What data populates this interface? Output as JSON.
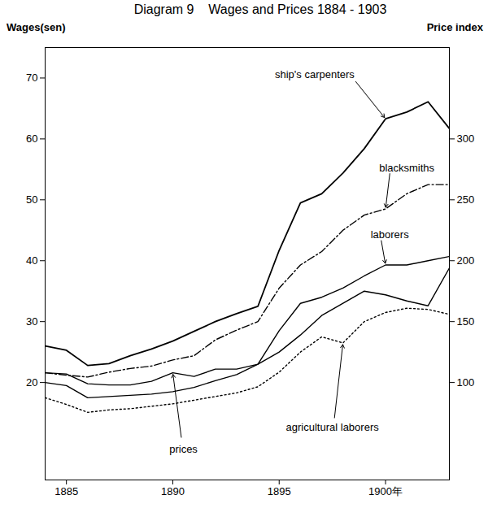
{
  "chart_data": {
    "type": "line",
    "title": "Diagram 9    Wages and Prices 1884 - 1903",
    "y_label": "Wages(sen)",
    "y2_label": "Price index",
    "x": [
      1884,
      1885,
      1886,
      1887,
      1888,
      1889,
      1890,
      1891,
      1892,
      1893,
      1894,
      1895,
      1896,
      1897,
      1898,
      1899,
      1900,
      1901,
      1902,
      1903
    ],
    "xlim": [
      1884,
      1903
    ],
    "xticks": [
      1885,
      1890,
      1895,
      {
        "value": 1900,
        "label": "1900年"
      }
    ],
    "ylim": [
      4,
      75
    ],
    "yticks": [
      20,
      30,
      40,
      50,
      60,
      70
    ],
    "y2lim": [
      20,
      375
    ],
    "y2ticks": [
      100,
      150,
      200,
      250,
      300
    ],
    "grid": false,
    "series": [
      {
        "name": "ship's carpenters",
        "color": "#000000",
        "line_style": "solid",
        "values": [
          26,
          25.3,
          22.8,
          23.1,
          24.4,
          25.5,
          26.8,
          28.4,
          30,
          31.3,
          32.5,
          41.7,
          49.5,
          51,
          54.4,
          58.4,
          63.3,
          64.4,
          66.1,
          61.7
        ]
      },
      {
        "name": "blacksmiths",
        "color": "#000000",
        "line_style": "dashdot",
        "values": [
          21.6,
          21.2,
          20.9,
          21.7,
          22.3,
          22.7,
          23.7,
          24.4,
          27,
          28.6,
          30,
          35.5,
          39.3,
          41.5,
          45,
          47.5,
          48.5,
          51,
          52.5,
          52.5
        ]
      },
      {
        "name": "laborers",
        "color": "#000000",
        "line_style": "solid",
        "values": [
          20,
          19.5,
          17.5,
          17.7,
          17.9,
          18.1,
          18.5,
          19.2,
          20.3,
          21.3,
          23,
          28.5,
          33,
          34,
          35.5,
          37.5,
          39.3,
          39.3,
          40,
          40.7
        ]
      },
      {
        "name": "prices",
        "color": "#000000",
        "line_style": "solid",
        "axis": "y2",
        "values": [
          108,
          107,
          99,
          98,
          98,
          101,
          108,
          105,
          111,
          111,
          115,
          125,
          139,
          155,
          165,
          175,
          172,
          167,
          163,
          194
        ]
      },
      {
        "name": "agricultural laborers",
        "color": "#000000",
        "line_style": "dotted",
        "values": [
          17.5,
          16.4,
          15.1,
          15.5,
          15.7,
          16.1,
          16.5,
          17.1,
          17.7,
          18.3,
          19.3,
          21.7,
          25,
          27.5,
          26.5,
          30,
          31.5,
          32.2,
          32,
          31.2
        ]
      }
    ]
  }
}
